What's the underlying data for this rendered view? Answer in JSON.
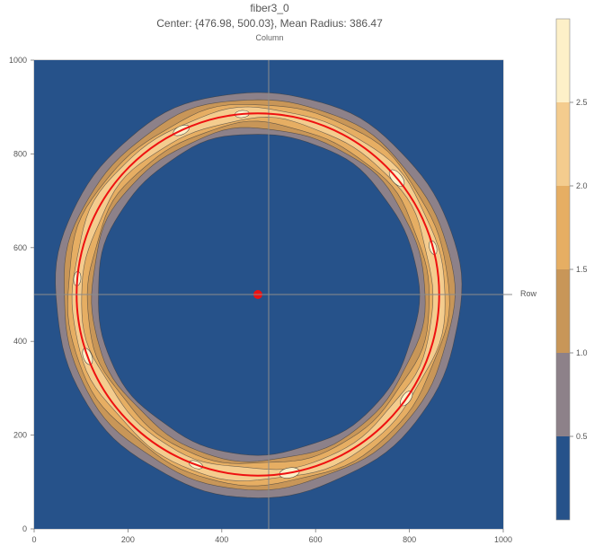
{
  "chart_data": {
    "type": "contour",
    "title": "fiber3_0",
    "subtitle": "Center: {476.98, 500.03}, Mean Radius: 386.47",
    "top_axis_label": "Column",
    "right_axis_label": "Row",
    "xlim": [
      0,
      1000
    ],
    "ylim": [
      0,
      1000
    ],
    "x_ticks": [
      0,
      200,
      400,
      600,
      800,
      1000
    ],
    "y_ticks": [
      0,
      200,
      400,
      600,
      800,
      1000
    ],
    "reference_lines": {
      "x": 500,
      "y": 500
    },
    "center": {
      "x": 476.98,
      "y": 500.03
    },
    "mean_radius": 386.47,
    "fitted_circle_color": "#ee1111",
    "legend": {
      "ticks": [
        0.5,
        1.0,
        1.5,
        2.0,
        2.5
      ],
      "levels": [
        {
          "from": 0.0,
          "to": 0.5,
          "color": "#26528a"
        },
        {
          "from": 0.5,
          "to": 1.0,
          "color": "#8d8189"
        },
        {
          "from": 1.0,
          "to": 1.5,
          "color": "#c89658"
        },
        {
          "from": 1.5,
          "to": 2.0,
          "color": "#e6ae63"
        },
        {
          "from": 2.0,
          "to": 2.5,
          "color": "#f4cc8e"
        },
        {
          "from": 2.5,
          "to": 3.0,
          "color": "#fdf0c8"
        }
      ]
    }
  }
}
